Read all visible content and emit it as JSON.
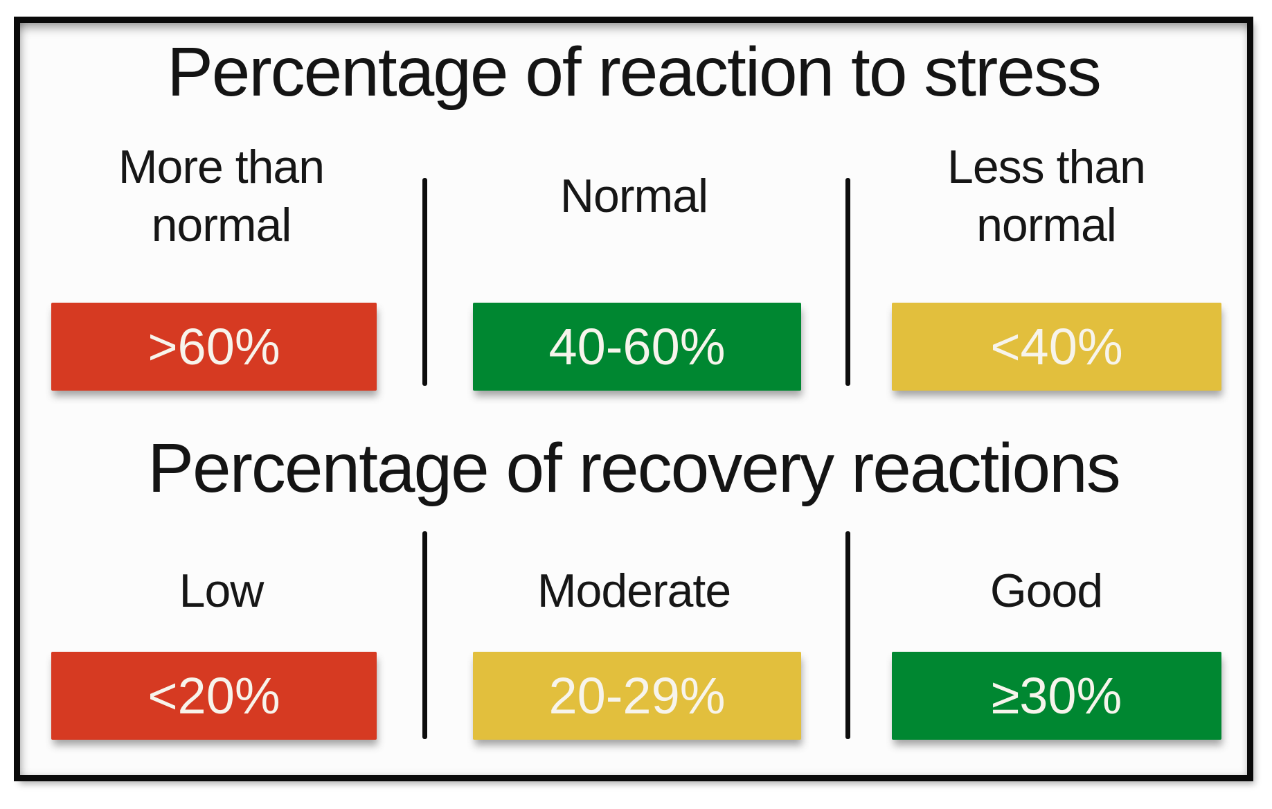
{
  "figure": {
    "type": "classification-legend-diagram",
    "background": "#fcfcfc",
    "frame_color": "#0a0a0a"
  },
  "colors": {
    "red": "#d63a22",
    "green": "#008731",
    "yellow": "#e2bf3d",
    "box_text": "#f7f4ec",
    "label_text": "#161616"
  },
  "sections": [
    {
      "title": "Percentage of reaction to stress",
      "columns": [
        {
          "label": "More than\nnormal",
          "value": ">60%",
          "color": "#d63a22",
          "color_name": "red"
        },
        {
          "label": "Normal",
          "value": "40-60%",
          "color": "#008731",
          "color_name": "green"
        },
        {
          "label": "Less than\nnormal",
          "value": "<40%",
          "color": "#e2bf3d",
          "color_name": "yellow"
        }
      ]
    },
    {
      "title": "Percentage of recovery reactions",
      "columns": [
        {
          "label": "Low",
          "value": "<20%",
          "color": "#d63a22",
          "color_name": "red"
        },
        {
          "label": "Moderate",
          "value": "20-29%",
          "color": "#e2bf3d",
          "color_name": "yellow"
        },
        {
          "label": "Good",
          "value": "≥30%",
          "color": "#008731",
          "color_name": "green"
        }
      ]
    }
  ]
}
